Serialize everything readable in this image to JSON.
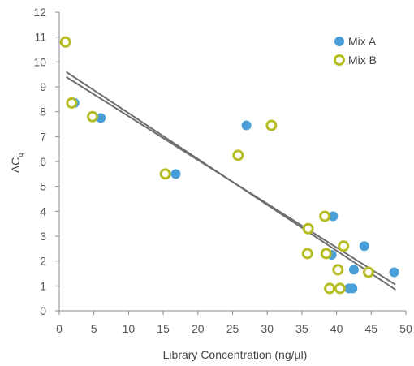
{
  "chart_data": {
    "type": "scatter",
    "title": "",
    "xlabel": "Library Concentration (ng/µl)",
    "ylabel_base": "ΔC",
    "ylabel_sub": "q",
    "xlim": [
      0,
      50
    ],
    "ylim": [
      0,
      12
    ],
    "xticks": [
      0,
      5,
      10,
      15,
      20,
      25,
      30,
      35,
      40,
      45,
      50
    ],
    "yticks": [
      0,
      1,
      2,
      3,
      4,
      5,
      6,
      7,
      8,
      9,
      10,
      11,
      12
    ],
    "grid": false,
    "legend_position": "top-right",
    "series": [
      {
        "name": "Mix A",
        "marker": "filled-circle",
        "color": "#4a9fd8",
        "points": [
          [
            2.2,
            8.35
          ],
          [
            6.0,
            7.75
          ],
          [
            16.8,
            5.5
          ],
          [
            27.0,
            7.45
          ],
          [
            39.5,
            3.8
          ],
          [
            39.3,
            2.25
          ],
          [
            42.5,
            1.65
          ],
          [
            44.0,
            2.6
          ],
          [
            41.8,
            0.9
          ],
          [
            42.3,
            0.9
          ],
          [
            48.3,
            1.55
          ]
        ],
        "trendline": {
          "x": [
            1,
            48.5
          ],
          "y": [
            9.4,
            1.05
          ]
        }
      },
      {
        "name": "Mix B",
        "marker": "open-circle",
        "color": "#b5bd22",
        "points": [
          [
            0.9,
            10.8
          ],
          [
            1.8,
            8.35
          ],
          [
            4.8,
            7.8
          ],
          [
            15.3,
            5.5
          ],
          [
            25.8,
            6.25
          ],
          [
            30.6,
            7.45
          ],
          [
            35.9,
            3.3
          ],
          [
            35.8,
            2.3
          ],
          [
            38.3,
            3.8
          ],
          [
            38.5,
            2.3
          ],
          [
            40.2,
            1.65
          ],
          [
            41.0,
            2.6
          ],
          [
            39.0,
            0.9
          ],
          [
            40.5,
            0.9
          ],
          [
            44.6,
            1.55
          ]
        ],
        "trendline": {
          "x": [
            1,
            48.5
          ],
          "y": [
            9.6,
            0.85
          ]
        }
      }
    ]
  },
  "colors": {
    "axis": "#888888",
    "trendline": "#6e6e6e",
    "background": "#ffffff"
  }
}
